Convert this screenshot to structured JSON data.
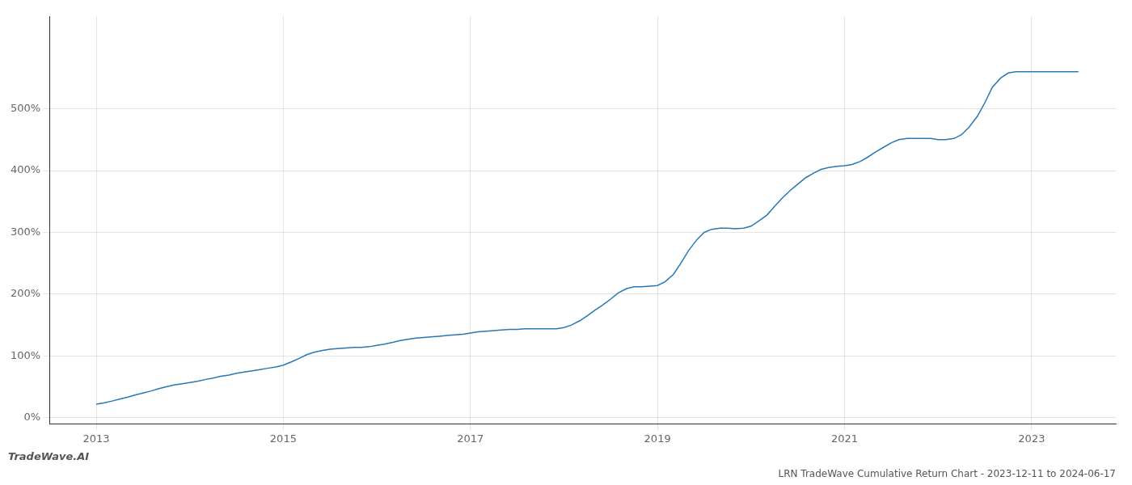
{
  "chart_data": {
    "type": "line",
    "title": "LRN TradeWave Cumulative Return Chart - 2023-12-11 to 2024-06-17",
    "annotations": [
      "TradeWave.AI"
    ],
    "color": "#2878b5",
    "grid": true,
    "xlim": [
      2012.5,
      2023.9
    ],
    "ylim": [
      -0.1,
      6.5
    ],
    "xticks": [
      2013,
      2015,
      2017,
      2019,
      2021,
      2023
    ],
    "yticks": [
      {
        "value": 0.0,
        "label": "0%"
      },
      {
        "value": 1.0,
        "label": "100%"
      },
      {
        "value": 2.0,
        "label": "200%"
      },
      {
        "value": 3.0,
        "label": "300%"
      },
      {
        "value": 4.0,
        "label": "400%"
      },
      {
        "value": 5.0,
        "label": "500%"
      }
    ],
    "x": [
      2013.0,
      2013.08,
      2013.17,
      2013.25,
      2013.33,
      2013.42,
      2013.5,
      2013.58,
      2013.67,
      2013.75,
      2013.83,
      2013.92,
      2014.0,
      2014.08,
      2014.17,
      2014.25,
      2014.33,
      2014.42,
      2014.5,
      2014.58,
      2014.67,
      2014.75,
      2014.83,
      2014.92,
      2015.0,
      2015.08,
      2015.17,
      2015.25,
      2015.33,
      2015.42,
      2015.5,
      2015.58,
      2015.67,
      2015.75,
      2015.83,
      2015.92,
      2016.0,
      2016.08,
      2016.17,
      2016.25,
      2016.33,
      2016.42,
      2016.5,
      2016.58,
      2016.67,
      2016.75,
      2016.83,
      2016.92,
      2017.0,
      2017.08,
      2017.17,
      2017.25,
      2017.33,
      2017.42,
      2017.5,
      2017.58,
      2017.67,
      2017.75,
      2017.83,
      2017.92,
      2018.0,
      2018.08,
      2018.17,
      2018.25,
      2018.33,
      2018.42,
      2018.5,
      2018.58,
      2018.67,
      2018.75,
      2018.83,
      2018.92,
      2019.0,
      2019.08,
      2019.17,
      2019.25,
      2019.33,
      2019.42,
      2019.5,
      2019.58,
      2019.67,
      2019.75,
      2019.83,
      2019.92,
      2020.0,
      2020.08,
      2020.17,
      2020.25,
      2020.33,
      2020.42,
      2020.5,
      2020.58,
      2020.67,
      2020.75,
      2020.83,
      2020.92,
      2021.0,
      2021.08,
      2021.17,
      2021.25,
      2021.33,
      2021.42,
      2021.5,
      2021.58,
      2021.67,
      2021.75,
      2021.83,
      2021.92,
      2022.0,
      2022.08,
      2022.17,
      2022.25,
      2022.33,
      2022.42,
      2022.5,
      2022.58,
      2022.67,
      2022.75,
      2022.83,
      2022.92,
      2023.0,
      2023.08,
      2023.17,
      2023.25,
      2023.33,
      2023.42,
      2023.5
    ],
    "values": [
      0.22,
      0.24,
      0.27,
      0.3,
      0.33,
      0.37,
      0.4,
      0.43,
      0.47,
      0.5,
      0.53,
      0.55,
      0.57,
      0.59,
      0.62,
      0.64,
      0.67,
      0.69,
      0.72,
      0.74,
      0.76,
      0.78,
      0.8,
      0.82,
      0.85,
      0.9,
      0.96,
      1.02,
      1.06,
      1.09,
      1.11,
      1.12,
      1.13,
      1.14,
      1.14,
      1.15,
      1.17,
      1.19,
      1.22,
      1.25,
      1.27,
      1.29,
      1.3,
      1.31,
      1.32,
      1.33,
      1.34,
      1.35,
      1.37,
      1.39,
      1.4,
      1.41,
      1.42,
      1.43,
      1.43,
      1.44,
      1.44,
      1.44,
      1.44,
      1.44,
      1.46,
      1.5,
      1.57,
      1.65,
      1.74,
      1.83,
      1.92,
      2.02,
      2.09,
      2.12,
      2.12,
      2.13,
      2.14,
      2.2,
      2.32,
      2.5,
      2.7,
      2.88,
      3.0,
      3.05,
      3.07,
      3.07,
      3.06,
      3.07,
      3.1,
      3.18,
      3.28,
      3.42,
      3.55,
      3.68,
      3.78,
      3.88,
      3.96,
      4.02,
      4.05,
      4.07,
      4.08,
      4.1,
      4.15,
      4.22,
      4.3,
      4.38,
      4.45,
      4.5,
      4.52,
      4.52,
      4.52,
      4.52,
      4.5,
      4.5,
      4.52,
      4.58,
      4.7,
      4.88,
      5.1,
      5.35,
      5.5,
      5.58,
      5.6,
      5.6,
      5.6,
      5.6,
      5.6,
      5.6,
      5.6,
      5.6,
      5.6
    ]
  }
}
